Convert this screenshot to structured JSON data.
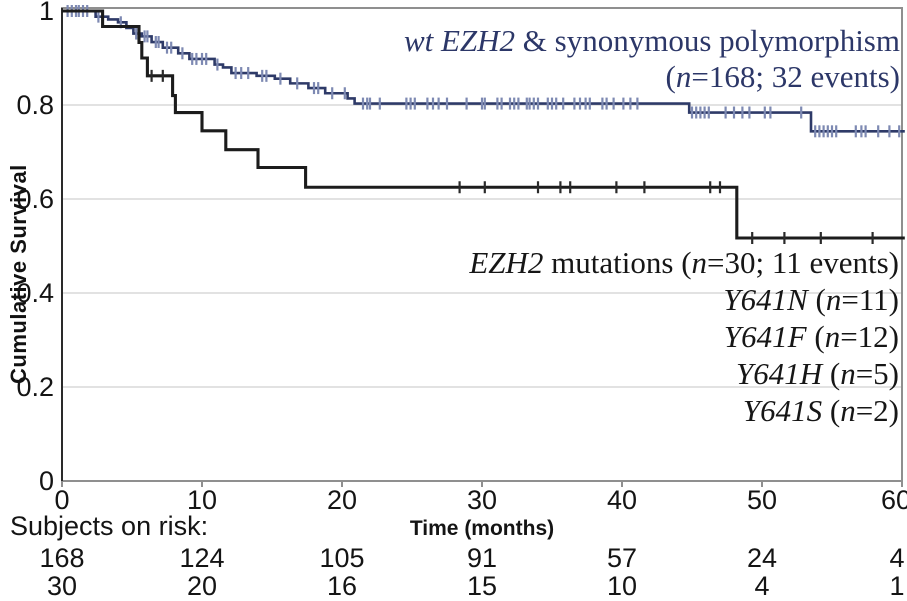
{
  "figure": {
    "ylabel": "Cumulative Survival",
    "xlabel": "Time (months)",
    "risk_label": "Subjects on risk:"
  },
  "colors": {
    "wt_line": "#2e3a68",
    "wt_censor": "#7d89b2",
    "wt_text": "#2c3768",
    "mut_line": "#1c1c1c",
    "mut_censor": "#2a2a2a",
    "mut_text": "#161616",
    "grid": "#d9d9d9",
    "frame": "#8f8f8f",
    "axis": "#2a2a2a"
  },
  "legend": {
    "wt": {
      "lines": [
        [
          {
            "t": "wt EZH2",
            "i": 1
          },
          {
            "t": " & synonymous polymorphism",
            "i": 0
          }
        ],
        [
          {
            "t": "(",
            "i": 0
          },
          {
            "t": "n",
            "i": 1
          },
          {
            "t": "=168; 32 events)",
            "i": 0
          }
        ]
      ]
    },
    "mut": {
      "lines": [
        [
          {
            "t": "EZH2",
            "i": 1
          },
          {
            "t": " mutations (",
            "i": 0
          },
          {
            "t": "n",
            "i": 1
          },
          {
            "t": "=30; 11 events)",
            "i": 0
          }
        ],
        [
          {
            "t": "Y641N",
            "i": 1
          },
          {
            "t": " (",
            "i": 0
          },
          {
            "t": "n",
            "i": 1
          },
          {
            "t": "=11)",
            "i": 0
          }
        ],
        [
          {
            "t": "Y641F",
            "i": 1
          },
          {
            "t": " (",
            "i": 0
          },
          {
            "t": "n",
            "i": 1
          },
          {
            "t": "=12)",
            "i": 0
          }
        ],
        [
          {
            "t": "Y641H",
            "i": 1
          },
          {
            "t": " (",
            "i": 0
          },
          {
            "t": "n",
            "i": 1
          },
          {
            "t": "=5)",
            "i": 0
          }
        ],
        [
          {
            "t": "Y641S",
            "i": 1
          },
          {
            "t": " (",
            "i": 0
          },
          {
            "t": "n",
            "i": 1
          },
          {
            "t": "=2)",
            "i": 0
          }
        ]
      ]
    }
  },
  "chart_data": {
    "type": "line",
    "subtype": "kaplan-meier-step",
    "title": "",
    "xlabel": "Time (months)",
    "ylabel": "Cumulative Survival",
    "xlim": [
      0,
      60
    ],
    "ylim": [
      0,
      1
    ],
    "x_ticks": [
      0,
      10,
      20,
      30,
      40,
      50,
      60
    ],
    "y_tick_labels": [
      "1",
      "0.8",
      "0.6",
      "0.4",
      "0.2",
      "0"
    ],
    "y_tick_values": [
      1,
      0.8,
      0.6,
      0.4,
      0.2,
      0
    ],
    "grid_y": [
      0.8,
      0.6,
      0.4,
      0.2
    ],
    "grid": "horizontal-only",
    "legend_position": "inside-right",
    "end_month": 60.2,
    "series": [
      {
        "name": "wt EZH2 & synonymous polymorphism",
        "n": 168,
        "events": 32,
        "line_width": 2.6,
        "steps": [
          [
            0,
            1.0
          ],
          [
            2.4,
            0.988
          ],
          [
            3.3,
            0.982
          ],
          [
            4.0,
            0.976
          ],
          [
            4.6,
            0.964
          ],
          [
            5.1,
            0.952
          ],
          [
            5.7,
            0.946
          ],
          [
            6.4,
            0.934
          ],
          [
            7.2,
            0.922
          ],
          [
            8.3,
            0.91
          ],
          [
            9.1,
            0.898
          ],
          [
            10.9,
            0.886
          ],
          [
            11.5,
            0.88
          ],
          [
            12.1,
            0.868
          ],
          [
            13.9,
            0.862
          ],
          [
            15.2,
            0.856
          ],
          [
            16.3,
            0.846
          ],
          [
            17.6,
            0.836
          ],
          [
            18.8,
            0.825
          ],
          [
            20.4,
            0.814
          ],
          [
            20.9,
            0.803
          ],
          [
            44.8,
            0.784
          ],
          [
            53.5,
            0.744
          ]
        ],
        "censor_times": [
          0.4,
          0.7,
          1.0,
          1.2,
          1.5,
          1.8,
          2.6,
          2.9,
          4.2,
          5.3,
          5.9,
          6.1,
          6.7,
          6.9,
          7.5,
          7.8,
          8.6,
          9.3,
          9.6,
          10.0,
          10.3,
          11.1,
          12.4,
          12.8,
          13.3,
          14.3,
          14.6,
          15.6,
          16.8,
          18.0,
          18.3,
          19.3,
          20.2,
          21.5,
          21.8,
          22.0,
          22.7,
          24.6,
          24.9,
          25.2,
          26.1,
          26.5,
          26.9,
          27.5,
          28.9,
          30.0,
          30.2,
          31.1,
          31.4,
          32.0,
          32.3,
          32.6,
          33.2,
          33.4,
          33.7,
          34.0,
          34.7,
          35.0,
          35.3,
          35.8,
          36.6,
          37.0,
          37.4,
          37.7,
          38.6,
          38.9,
          39.4,
          40.1,
          40.6,
          41.1,
          45.0,
          45.3,
          45.6,
          45.9,
          46.2,
          47.4,
          48.0,
          48.6,
          49.1,
          50.2,
          50.6,
          52.8,
          53.8,
          54.1,
          54.4,
          54.7,
          55.0,
          55.3,
          56.7,
          57.1,
          57.4,
          58.3,
          59.1,
          59.8
        ]
      },
      {
        "name": "EZH2 mutations",
        "n": 30,
        "events": 11,
        "line_width": 3.1,
        "steps": [
          [
            0,
            1.0
          ],
          [
            2.9,
            0.967
          ],
          [
            5.5,
            0.933
          ],
          [
            5.7,
            0.9
          ],
          [
            6.1,
            0.862
          ],
          [
            7.9,
            0.82
          ],
          [
            8.1,
            0.784
          ],
          [
            10.0,
            0.745
          ],
          [
            11.7,
            0.705
          ],
          [
            14.0,
            0.667
          ],
          [
            17.4,
            0.625
          ],
          [
            48.2,
            0.517
          ]
        ],
        "censor_times": [
          6.4,
          7.2,
          28.4,
          30.2,
          34.0,
          35.6,
          36.3,
          39.6,
          41.6,
          46.3,
          47.0,
          49.3,
          51.6,
          54.2,
          57.9
        ]
      }
    ],
    "subjects_on_risk": {
      "times": [
        0,
        10,
        20,
        30,
        40,
        50,
        60
      ],
      "rows": [
        {
          "group": "wt EZH2 & synonymous polymorphism",
          "values": [
            168,
            124,
            105,
            91,
            57,
            24,
            4
          ]
        },
        {
          "group": "EZH2 mutations",
          "values": [
            30,
            20,
            16,
            15,
            10,
            4,
            1
          ]
        }
      ]
    }
  }
}
